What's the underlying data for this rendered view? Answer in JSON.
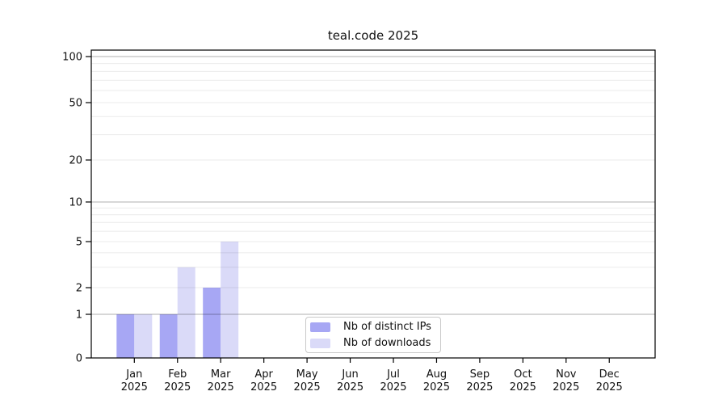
{
  "chart_data": {
    "type": "bar",
    "title": "teal.code 2025",
    "year_label": "2025",
    "categories": [
      "Jan",
      "Feb",
      "Mar",
      "Apr",
      "May",
      "Jun",
      "Jul",
      "Aug",
      "Sep",
      "Oct",
      "Nov",
      "Dec"
    ],
    "series": [
      {
        "name": "Nb of distinct IPs",
        "color": "#a7a7f4",
        "values": [
          1,
          1,
          2,
          0,
          0,
          0,
          0,
          0,
          0,
          0,
          0,
          0
        ]
      },
      {
        "name": "Nb of downloads",
        "color": "#dadaf8",
        "values": [
          1,
          3,
          5,
          0,
          0,
          0,
          0,
          0,
          0,
          0,
          0,
          0
        ]
      }
    ],
    "y_axis": {
      "tick_values": [
        0,
        1,
        2,
        5,
        10,
        20,
        50,
        100
      ],
      "scale": "log-like with zero baseline",
      "range_top": 110
    },
    "grid": {
      "major_values": [
        1,
        10,
        100
      ],
      "minor_values": [
        2,
        3,
        4,
        5,
        6,
        7,
        8,
        9,
        20,
        30,
        40,
        50,
        60,
        70,
        80,
        90
      ]
    },
    "legend": {
      "position": "lower center",
      "entries": [
        "Nb of distinct IPs",
        "Nb of downloads"
      ]
    }
  },
  "colors": {
    "background": "#ffffff",
    "axis": "#000000",
    "major_grid": "rgba(0,0,0,0.25)",
    "minor_grid": "rgba(0,0,0,0.08)",
    "text": "#111111",
    "legend_border": "#c9c9c9"
  }
}
